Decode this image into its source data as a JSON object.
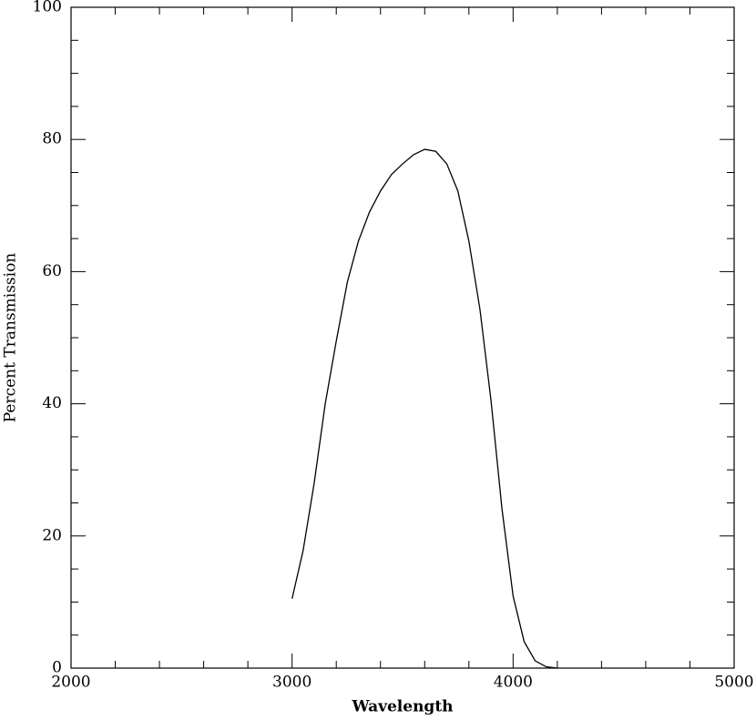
{
  "chart_data": {
    "type": "line",
    "x_label": "Wavelength",
    "y_label": "Percent Transmission",
    "xlim": [
      2000,
      5000
    ],
    "ylim": [
      0,
      100
    ],
    "xticks": [
      2000,
      3000,
      4000,
      5000
    ],
    "yticks": [
      0,
      20,
      40,
      60,
      80,
      100
    ],
    "xminor_ticks": [
      2200,
      2400,
      2600,
      2800,
      3200,
      3400,
      3600,
      3800,
      4200,
      4400,
      4600,
      4800
    ],
    "yminor_ticks": [
      5,
      10,
      15,
      25,
      30,
      35,
      45,
      50,
      55,
      65,
      70,
      75,
      85,
      90,
      95
    ],
    "grid": false,
    "series": [
      {
        "color": "#000000",
        "x": [
          3000,
          3050,
          3100,
          3150,
          3200,
          3250,
          3300,
          3350,
          3400,
          3450,
          3500,
          3550,
          3600,
          3650,
          3700,
          3750,
          3800,
          3850,
          3900,
          3950,
          4000,
          4050,
          4100,
          4150,
          4200
        ],
        "values": [
          10.5,
          17.8,
          28,
          40,
          49.5,
          58.4,
          64.6,
          69,
          72.2,
          74.7,
          76.3,
          77.7,
          78.5,
          78.2,
          76.3,
          72.2,
          64.6,
          54.3,
          40.5,
          24,
          10.9,
          4,
          1.1,
          0.2,
          0
        ]
      }
    ]
  }
}
